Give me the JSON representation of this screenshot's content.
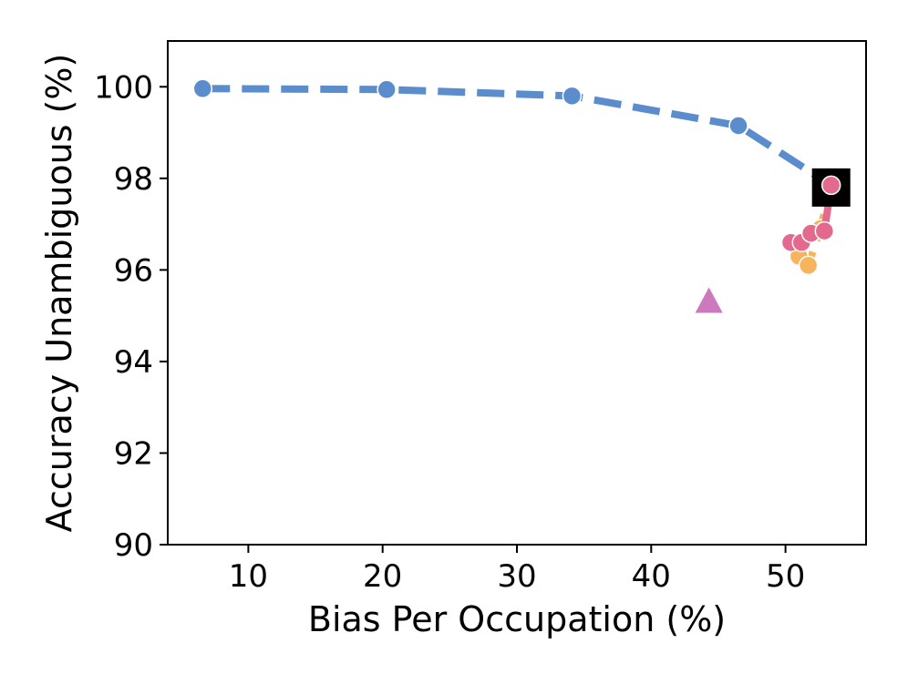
{
  "chart_data": {
    "type": "scatter",
    "title": "",
    "xlabel": "Bias Per Occupation (%)",
    "ylabel": "Accuracy Unambiguous (%)",
    "xlim": [
      4,
      56
    ],
    "ylim": [
      90,
      101
    ],
    "x_ticks": [
      10,
      20,
      30,
      40,
      50
    ],
    "y_ticks": [
      90,
      92,
      94,
      96,
      98,
      100
    ],
    "grid": false,
    "legend": "none",
    "series": [
      {
        "color": "#5b8ccc",
        "line_style": "dashed",
        "marker": "circle",
        "x": [
          6.6,
          20.3,
          34.1,
          46.5,
          53.4
        ],
        "y": [
          99.96,
          99.94,
          99.8,
          99.15,
          97.85
        ]
      },
      {
        "color": "#f7b45c",
        "line_style": "dashed",
        "marker": "circle",
        "x": [
          51.0,
          51.7,
          52.6,
          53.4
        ],
        "y": [
          96.3,
          96.1,
          96.9,
          97.85
        ]
      },
      {
        "color": "#e4698e",
        "line_style": "solid",
        "marker": "circle",
        "x": [
          50.4,
          51.2,
          51.9,
          52.9,
          53.4
        ],
        "y": [
          96.6,
          96.6,
          96.8,
          96.85,
          97.85
        ]
      },
      {
        "color": "#000000",
        "line_style": "none",
        "marker": "square",
        "x": [
          53.4
        ],
        "y": [
          97.8
        ]
      },
      {
        "color": "#cc79bd",
        "line_style": "none",
        "marker": "triangle",
        "x": [
          44.3
        ],
        "y": [
          95.3
        ]
      }
    ]
  }
}
